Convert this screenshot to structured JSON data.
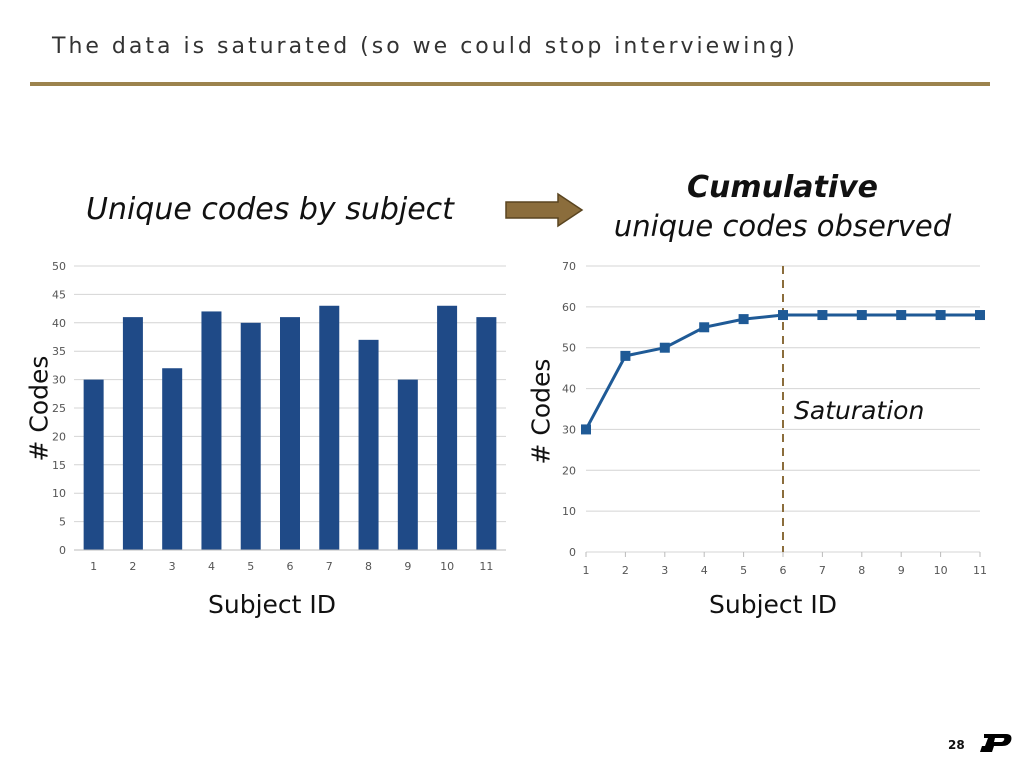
{
  "slide": {
    "title": "The data is saturated (so we could stop interviewing)",
    "page_number": "28",
    "logo_icon": "purdue-p-logo-icon",
    "accent_color": "#9c834d"
  },
  "left_heading": "Unique codes by subject",
  "right_heading": {
    "bold": "Cumulative",
    "sub": "unique codes observed"
  },
  "arrow_icon": "right-arrow-icon",
  "saturation_label": "Saturation",
  "chart_data": [
    {
      "type": "bar",
      "categories": [
        "1",
        "2",
        "3",
        "4",
        "5",
        "6",
        "7",
        "8",
        "9",
        "10",
        "11"
      ],
      "values": [
        30,
        41,
        32,
        42,
        40,
        41,
        43,
        37,
        30,
        43,
        41
      ],
      "title": "Unique codes by subject",
      "xlabel": "Subject ID",
      "ylabel": "# Codes",
      "ylim": [
        0,
        50
      ],
      "yticks": [
        0,
        5,
        10,
        15,
        20,
        25,
        30,
        35,
        40,
        45,
        50
      ],
      "grid": true,
      "color": "#1f4a87"
    },
    {
      "type": "line",
      "x": [
        1,
        2,
        3,
        4,
        5,
        6,
        7,
        8,
        9,
        10,
        11
      ],
      "values": [
        30,
        48,
        50,
        55,
        57,
        58,
        58,
        58,
        58,
        58,
        58
      ],
      "title": "Cumulative unique codes observed",
      "xlabel": "Subject ID",
      "ylabel": "# Codes",
      "ylim": [
        0,
        70
      ],
      "yticks": [
        0,
        10,
        20,
        30,
        40,
        50,
        60,
        70
      ],
      "grid": true,
      "marker": "square",
      "color": "#1f5a96",
      "annotation": {
        "type": "vline",
        "x": 6,
        "label": "Saturation",
        "color": "#8b6d3c"
      }
    }
  ]
}
